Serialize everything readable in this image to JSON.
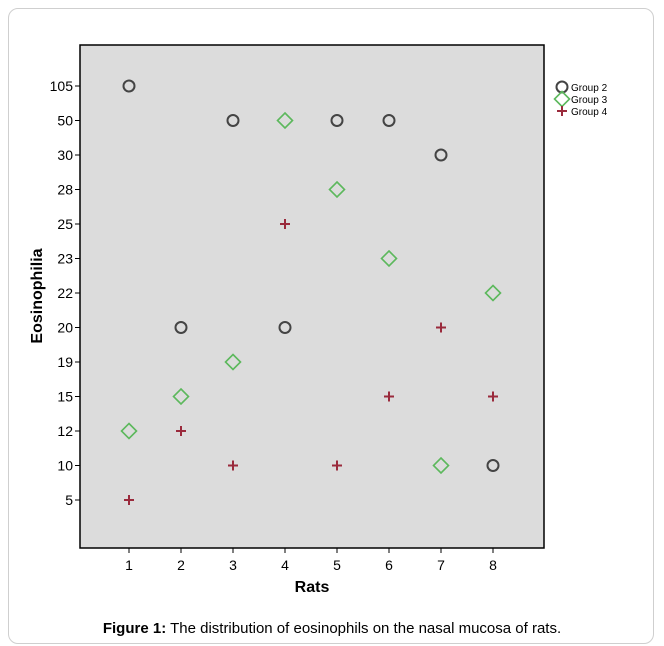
{
  "caption": {
    "label": "Figure 1:",
    "text": " The distribution of eosinophils on the nasal mucosa of rats."
  },
  "colors": {
    "plot_background": "#dcdcdc",
    "axis": "#000000",
    "Group 2": "#444444",
    "Group 3": "#5cb85c",
    "Group 4": "#9a2a3c"
  },
  "chart_data": {
    "type": "scatter",
    "xlabel": "Rats",
    "ylabel": "Eosinophilia",
    "x_ticks": [
      "1",
      "2",
      "3",
      "4",
      "5",
      "6",
      "7",
      "8"
    ],
    "y_ticks": [
      "5",
      "10",
      "12",
      "15",
      "19",
      "20",
      "22",
      "23",
      "25",
      "28",
      "30",
      "50",
      "105"
    ],
    "y_scale": "categorical",
    "grid": false,
    "legend_position": "top-right outside plot",
    "series": [
      {
        "name": "Group 2",
        "marker": "circle",
        "points": [
          {
            "x": "1",
            "y": "105"
          },
          {
            "x": "2",
            "y": "20"
          },
          {
            "x": "3",
            "y": "50"
          },
          {
            "x": "4",
            "y": "20"
          },
          {
            "x": "5",
            "y": "50"
          },
          {
            "x": "6",
            "y": "50"
          },
          {
            "x": "7",
            "y": "30"
          },
          {
            "x": "8",
            "y": "10"
          }
        ]
      },
      {
        "name": "Group 3",
        "marker": "diamond",
        "points": [
          {
            "x": "1",
            "y": "12"
          },
          {
            "x": "2",
            "y": "15"
          },
          {
            "x": "3",
            "y": "19"
          },
          {
            "x": "4",
            "y": "50"
          },
          {
            "x": "5",
            "y": "28"
          },
          {
            "x": "6",
            "y": "23"
          },
          {
            "x": "7",
            "y": "10"
          },
          {
            "x": "8",
            "y": "22"
          }
        ]
      },
      {
        "name": "Group 4",
        "marker": "plus",
        "points": [
          {
            "x": "1",
            "y": "5"
          },
          {
            "x": "2",
            "y": "12"
          },
          {
            "x": "3",
            "y": "10"
          },
          {
            "x": "4",
            "y": "25"
          },
          {
            "x": "5",
            "y": "10"
          },
          {
            "x": "6",
            "y": "15"
          },
          {
            "x": "7",
            "y": "20"
          },
          {
            "x": "8",
            "y": "15"
          }
        ]
      }
    ]
  }
}
